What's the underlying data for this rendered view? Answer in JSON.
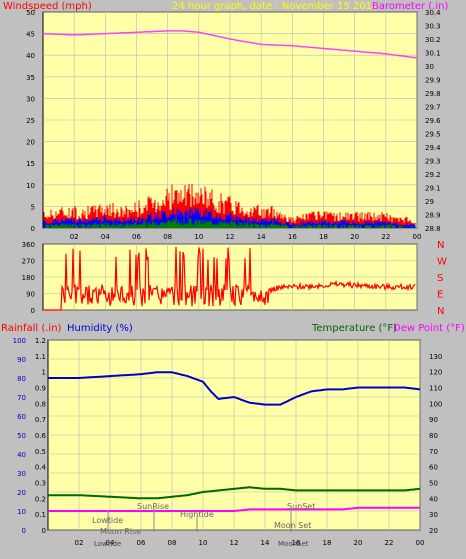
{
  "colors": {
    "plot_bg": "#ffffa8",
    "panel_bg": "#c0c0c0",
    "grid": "#b8b8b8",
    "windspeed": "#ff0000",
    "wind_blue": "#0000ff",
    "wind_green": "#008000",
    "barometer": "#ff40ff",
    "direction": "#ff0000",
    "humidity": "#0000cc",
    "temperature": "#006600",
    "dewpoint": "#ff00ff",
    "rain_label": "#ff0000",
    "caption": "#ffff00",
    "tide_text": "#666666"
  },
  "header": {
    "wind_title": "Windspeed (mph)",
    "graph_title": "24 hour graph, date : November 15 2017",
    "baro_title": "Barometer (.in)"
  },
  "panel3_header": {
    "rain_title": "Rainfall (.in)",
    "humidity_title": "Humidity (%)",
    "temp_title": "Temperature (°F)",
    "dew_title": "Dew Point (°F)"
  },
  "compass": [
    "N",
    "W",
    "S",
    "E",
    "N"
  ],
  "annotations": {
    "lowtide": "Lowtide",
    "sunrise": "SunRise",
    "hightide": "Hightide",
    "moonrise": "Moon Rise",
    "sunset": "SunSet",
    "moonset": "Moon Set",
    "lowtide_axis": "Lowtide",
    "moonset_axis": "MoonSet"
  },
  "chart_data": [
    {
      "type": "line",
      "name": "wind-barometer",
      "x_ticks": [
        "02",
        "04",
        "06",
        "08",
        "10",
        "12",
        "14",
        "16",
        "18",
        "20",
        "22",
        "00"
      ],
      "y_left": {
        "label": "Windspeed (mph)",
        "range": [
          0,
          50
        ],
        "ticks": [
          "0",
          "5",
          "10",
          "15",
          "20",
          "25",
          "30",
          "35",
          "40",
          "45",
          "50"
        ]
      },
      "y_right": {
        "label": "Barometer (.in)",
        "range": [
          28.8,
          30.4
        ],
        "ticks": [
          "28.8",
          "28.9",
          "29",
          "29.1",
          "29.2",
          "29.3",
          "29.4",
          "29.5",
          "29.6",
          "29.7",
          "29.8",
          "29.9",
          "30",
          "30.1",
          "30.2",
          "30.3",
          "30.4"
        ]
      },
      "series": [
        {
          "name": "Barometer (.in)",
          "axis": "right",
          "x": [
            0,
            2,
            4,
            6,
            8,
            9,
            10,
            12,
            14,
            16,
            18,
            20,
            22,
            24
          ],
          "y": [
            30.24,
            30.23,
            30.24,
            30.25,
            30.26,
            30.26,
            30.25,
            30.2,
            30.16,
            30.15,
            30.13,
            30.11,
            30.09,
            30.06
          ]
        },
        {
          "name": "Windspeed (mph)",
          "axis": "left",
          "x": [
            0,
            1,
            2,
            3,
            4,
            5,
            6,
            7,
            8,
            9,
            10,
            11,
            12,
            13,
            14,
            15,
            16,
            17,
            18,
            19,
            20,
            21,
            22,
            23,
            24
          ],
          "y": [
            3,
            4,
            4,
            4,
            5,
            4,
            5,
            6,
            8,
            8,
            8,
            7,
            6,
            5,
            4,
            4,
            2,
            3,
            3,
            3,
            3,
            3,
            3,
            2,
            2
          ]
        }
      ]
    },
    {
      "type": "line",
      "name": "wind-direction",
      "x_ticks": [
        "02",
        "04",
        "06",
        "08",
        "10",
        "12",
        "14",
        "16",
        "18",
        "20",
        "22",
        "00"
      ],
      "y_left": {
        "range": [
          0,
          360
        ],
        "ticks": [
          "0",
          "90",
          "180",
          "270",
          "360"
        ]
      },
      "series": [
        {
          "name": "Wind direction",
          "x": [
            0,
            1,
            2,
            3,
            4,
            5,
            6,
            7,
            8,
            9,
            10,
            11,
            12,
            13,
            14,
            15,
            16,
            17,
            18,
            19,
            20,
            21,
            22,
            23,
            24
          ],
          "y": [
            0,
            90,
            90,
            90,
            90,
            90,
            90,
            90,
            90,
            90,
            90,
            90,
            90,
            90,
            90,
            120,
            125,
            130,
            135,
            140,
            135,
            130,
            125,
            125,
            130
          ]
        }
      ]
    },
    {
      "type": "line",
      "name": "rain-humidity-temp",
      "x_ticks": [
        "02",
        "04",
        "06",
        "08",
        "10",
        "12",
        "14",
        "16",
        "18",
        "20",
        "22",
        "00"
      ],
      "y_left_humidity": {
        "label": "Humidity (%)",
        "range": [
          0,
          100
        ],
        "ticks": [
          "0",
          "10",
          "20",
          "30",
          "40",
          "50",
          "60",
          "70",
          "80",
          "90",
          "100"
        ]
      },
      "y_left_rain": {
        "label": "Rainfall (.in)",
        "range": [
          0,
          1.2
        ],
        "ticks": [
          "0",
          "0.1",
          "0.2",
          "0.3",
          "0.4",
          "0.5",
          "0.6",
          "0.7",
          "0.8",
          "0.9",
          "1",
          "1.1",
          "1.2"
        ]
      },
      "y_right": {
        "label": "Temperature (°F)",
        "range": [
          20,
          140
        ],
        "ticks": [
          "20",
          "30",
          "40",
          "50",
          "60",
          "70",
          "80",
          "90",
          "100",
          "110",
          "120",
          "130"
        ]
      },
      "series": [
        {
          "name": "Humidity (%)",
          "axis": "humidity",
          "x": [
            0,
            2,
            4,
            6,
            7,
            8,
            9,
            10,
            10.5,
            11,
            12,
            13,
            14,
            15,
            16,
            17,
            18,
            19,
            20,
            21,
            22,
            23,
            24
          ],
          "y": [
            80,
            80,
            81,
            82,
            83,
            83,
            81,
            78,
            73,
            69,
            70,
            67,
            66,
            66,
            70,
            73,
            74,
            74,
            75,
            75,
            75,
            75,
            74
          ]
        },
        {
          "name": "Temperature (°F)",
          "axis": "right",
          "x": [
            0,
            2,
            4,
            6,
            7,
            8,
            9,
            10,
            11,
            12,
            13,
            14,
            15,
            16,
            17,
            18,
            19,
            20,
            21,
            22,
            23,
            24
          ],
          "y": [
            42,
            42,
            41,
            40,
            40,
            41,
            42,
            44,
            45,
            46,
            47,
            46,
            46,
            45,
            45,
            45,
            45,
            45,
            45,
            45,
            45,
            46
          ]
        },
        {
          "name": "Dew Point (°F)",
          "axis": "right",
          "x": [
            0,
            2,
            4,
            6,
            7,
            8,
            9,
            10,
            11,
            12,
            13,
            14,
            15,
            16,
            17,
            18,
            19,
            20,
            21,
            22,
            23,
            24
          ],
          "y": [
            32,
            32,
            32,
            32,
            32,
            32,
            32,
            32,
            32,
            32,
            33,
            33,
            33,
            33,
            33,
            33,
            33,
            34,
            34,
            34,
            34,
            34
          ]
        }
      ]
    }
  ]
}
